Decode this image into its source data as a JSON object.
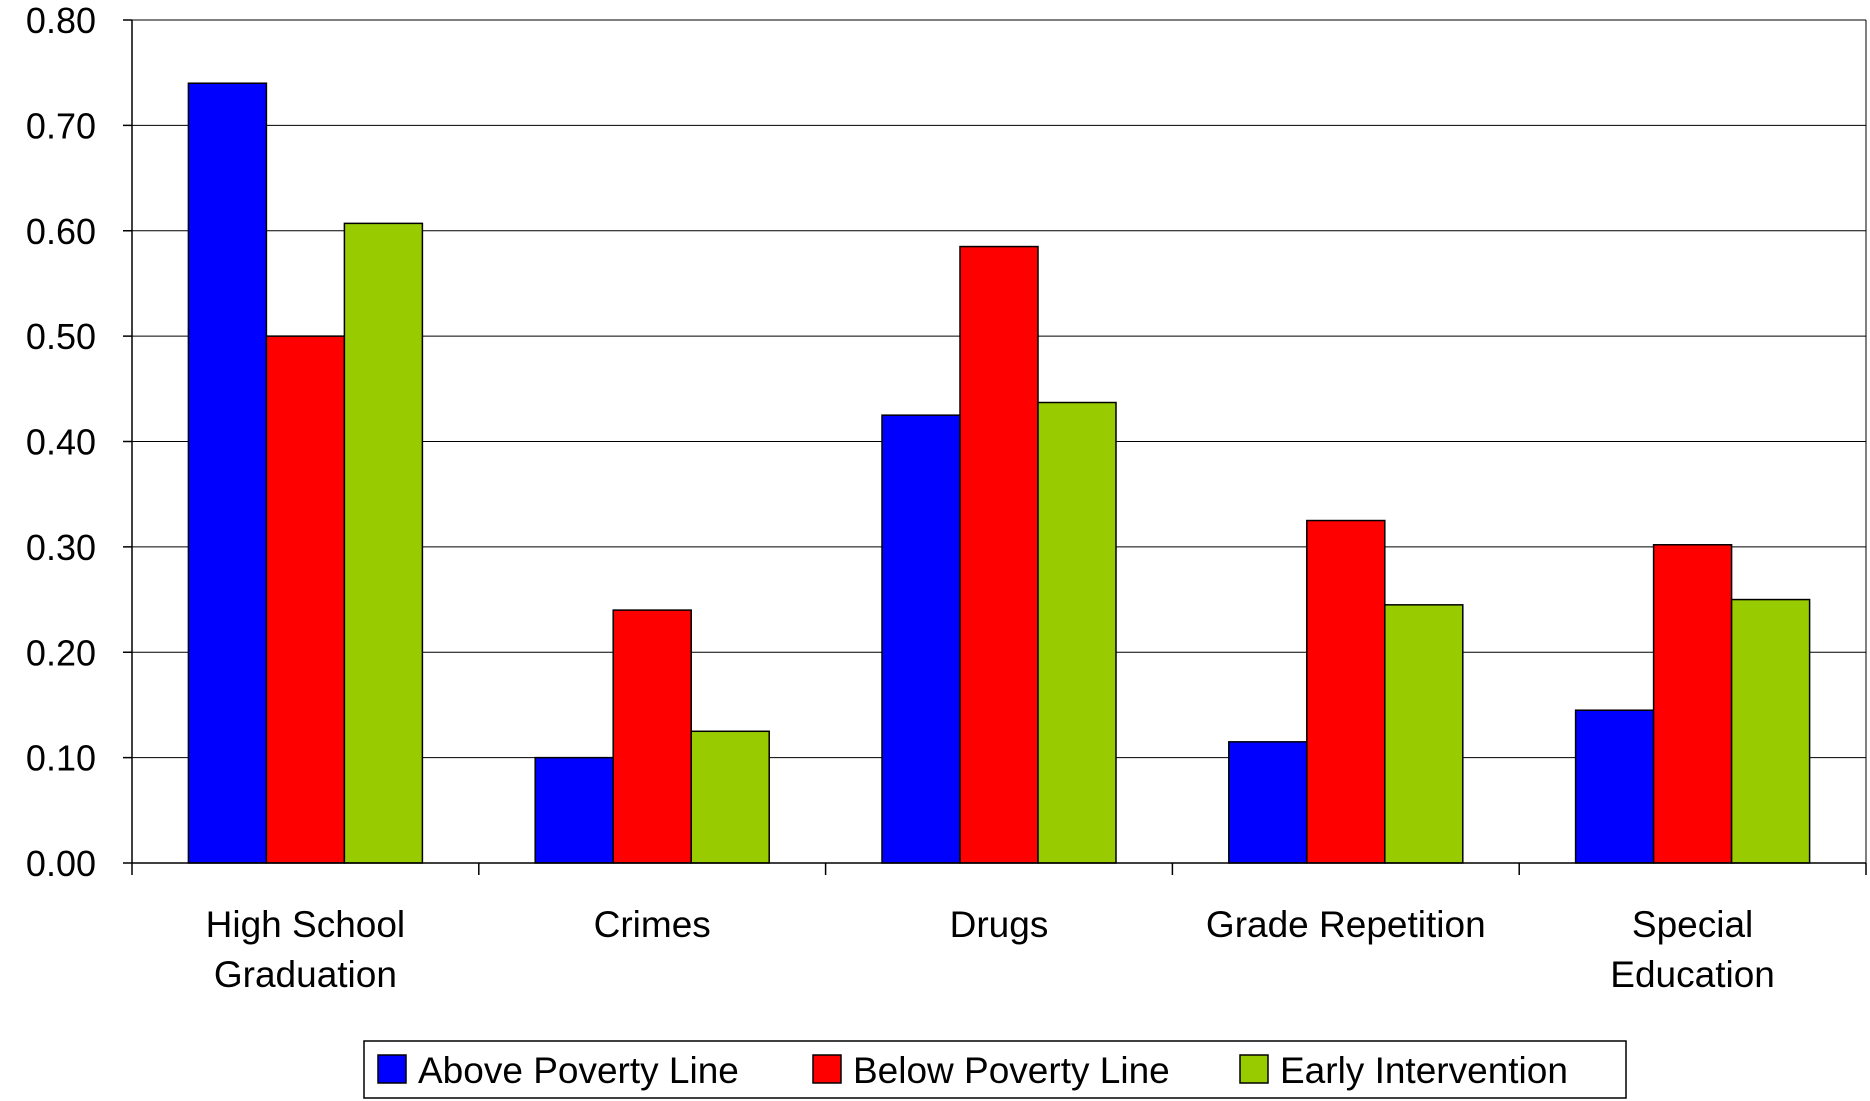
{
  "chart_data": {
    "type": "bar",
    "title": "",
    "xlabel": "",
    "ylabel": "",
    "ylim": [
      0,
      0.8
    ],
    "yticks": [
      "0.00",
      "0.10",
      "0.20",
      "0.30",
      "0.40",
      "0.50",
      "0.60",
      "0.70",
      "0.80"
    ],
    "grid": true,
    "legend_position": "bottom",
    "categories": [
      [
        "High School",
        "Graduation"
      ],
      [
        "Crimes"
      ],
      [
        "Drugs"
      ],
      [
        "Grade Repetition"
      ],
      [
        "Special",
        "Education"
      ]
    ],
    "series": [
      {
        "name": "Above Poverty Line",
        "color": "#0000ff",
        "values": [
          0.74,
          0.1,
          0.425,
          0.115,
          0.145
        ]
      },
      {
        "name": "Below Poverty Line",
        "color": "#ff0000",
        "values": [
          0.5,
          0.24,
          0.585,
          0.325,
          0.302
        ]
      },
      {
        "name": "Early Intervention",
        "color": "#99cc00",
        "values": [
          0.607,
          0.125,
          0.437,
          0.245,
          0.25
        ]
      }
    ]
  }
}
